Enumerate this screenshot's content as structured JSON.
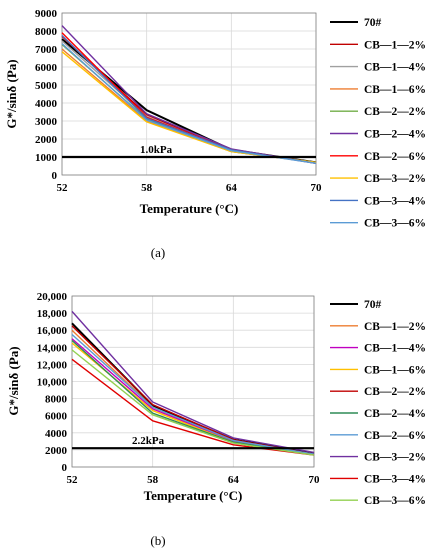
{
  "chart_data": [
    {
      "type": "line",
      "panel_label": "(a)",
      "xlabel": "Temperature (°C)",
      "ylabel": "G*/sinδ (Pa)",
      "x": [
        52,
        58,
        64,
        70
      ],
      "x_tick_labels": [
        "52",
        "58",
        "64",
        "70"
      ],
      "ylim": [
        0,
        9000
      ],
      "y_tick_labels": [
        "0",
        "1000",
        "2000",
        "3000",
        "4000",
        "5000",
        "6000",
        "7000",
        "8000",
        "9000"
      ],
      "grid": "vertical and horizontal major gridlines",
      "legend_position": "right",
      "reference_line": {
        "value": 1000,
        "label": "1.0kPa",
        "color": "#000000"
      },
      "series": [
        {
          "name": "70#",
          "color": "#000000",
          "width": 2,
          "values": [
            7550,
            3600,
            1400,
            700
          ]
        },
        {
          "name": "CB—1—2%",
          "color": "#c00000",
          "width": 1.4,
          "values": [
            7700,
            3350,
            1350,
            700
          ]
        },
        {
          "name": "CB—1—4%",
          "color": "#a0a0a0",
          "width": 1.4,
          "values": [
            7450,
            3250,
            1350,
            700
          ]
        },
        {
          "name": "CB—1—6%",
          "color": "#ed7d31",
          "width": 1.4,
          "values": [
            7000,
            3000,
            1300,
            700
          ]
        },
        {
          "name": "CB—2—2%",
          "color": "#70ad47",
          "width": 1.4,
          "values": [
            7250,
            3100,
            1300,
            700
          ]
        },
        {
          "name": "CB—2—4%",
          "color": "#7030a0",
          "width": 1.4,
          "values": [
            8300,
            3400,
            1450,
            650
          ]
        },
        {
          "name": "CB—2—6%",
          "color": "#ff0000",
          "width": 1.4,
          "values": [
            7900,
            3200,
            1400,
            650
          ]
        },
        {
          "name": "CB—3—2%",
          "color": "#ffc000",
          "width": 1.4,
          "values": [
            6850,
            2950,
            1300,
            700
          ]
        },
        {
          "name": "CB—3—4%",
          "color": "#4472c4",
          "width": 1.4,
          "values": [
            7750,
            3150,
            1400,
            650
          ]
        },
        {
          "name": "CB—3—6%",
          "color": "#5b9bd5",
          "width": 1.4,
          "values": [
            7300,
            3050,
            1350,
            650
          ]
        }
      ]
    },
    {
      "type": "line",
      "panel_label": "(b)",
      "xlabel": "Temperature (°C)",
      "ylabel": "G*/sinδ (Pa)",
      "x": [
        52,
        58,
        64,
        70
      ],
      "x_tick_labels": [
        "52",
        "58",
        "64",
        "70"
      ],
      "ylim": [
        0,
        20000
      ],
      "y_tick_labels": [
        "0",
        "2000",
        "4000",
        "6000",
        "8000",
        "10,000",
        "12,000",
        "14,000",
        "16,000",
        "18,000",
        "20,000"
      ],
      "grid": "vertical and horizontal major gridlines",
      "legend_position": "right",
      "reference_line": {
        "value": 2200,
        "label": "2.2kPa",
        "color": "#000000"
      },
      "series": [
        {
          "name": "70#",
          "color": "#000000",
          "width": 2,
          "values": [
            16800,
            7200,
            3200,
            1600
          ]
        },
        {
          "name": "CB—1—2%",
          "color": "#ed7d31",
          "width": 1.4,
          "values": [
            16000,
            7000,
            3000,
            1500
          ]
        },
        {
          "name": "CB—1—4%",
          "color": "#c000c0",
          "width": 1.4,
          "values": [
            15000,
            6800,
            3000,
            1500
          ]
        },
        {
          "name": "CB—1—6%",
          "color": "#ffc000",
          "width": 1.4,
          "values": [
            14500,
            6600,
            2900,
            1500
          ]
        },
        {
          "name": "CB—2—2%",
          "color": "#c00000",
          "width": 1.4,
          "values": [
            16500,
            7300,
            3200,
            1500
          ]
        },
        {
          "name": "CB—2—4%",
          "color": "#2e8b57",
          "width": 1.4,
          "values": [
            14800,
            6300,
            2900,
            1500
          ]
        },
        {
          "name": "CB—2—6%",
          "color": "#5b9bd5",
          "width": 1.4,
          "values": [
            15500,
            7000,
            3100,
            1500
          ]
        },
        {
          "name": "CB—3—2%",
          "color": "#7030a0",
          "width": 1.4,
          "values": [
            18200,
            7600,
            3400,
            1700
          ]
        },
        {
          "name": "CB—3—4%",
          "color": "#e00000",
          "width": 1.4,
          "values": [
            12600,
            5400,
            2600,
            1400
          ]
        },
        {
          "name": "CB—3—6%",
          "color": "#92d050",
          "width": 1.4,
          "values": [
            13700,
            6100,
            2800,
            1400
          ]
        }
      ]
    }
  ]
}
